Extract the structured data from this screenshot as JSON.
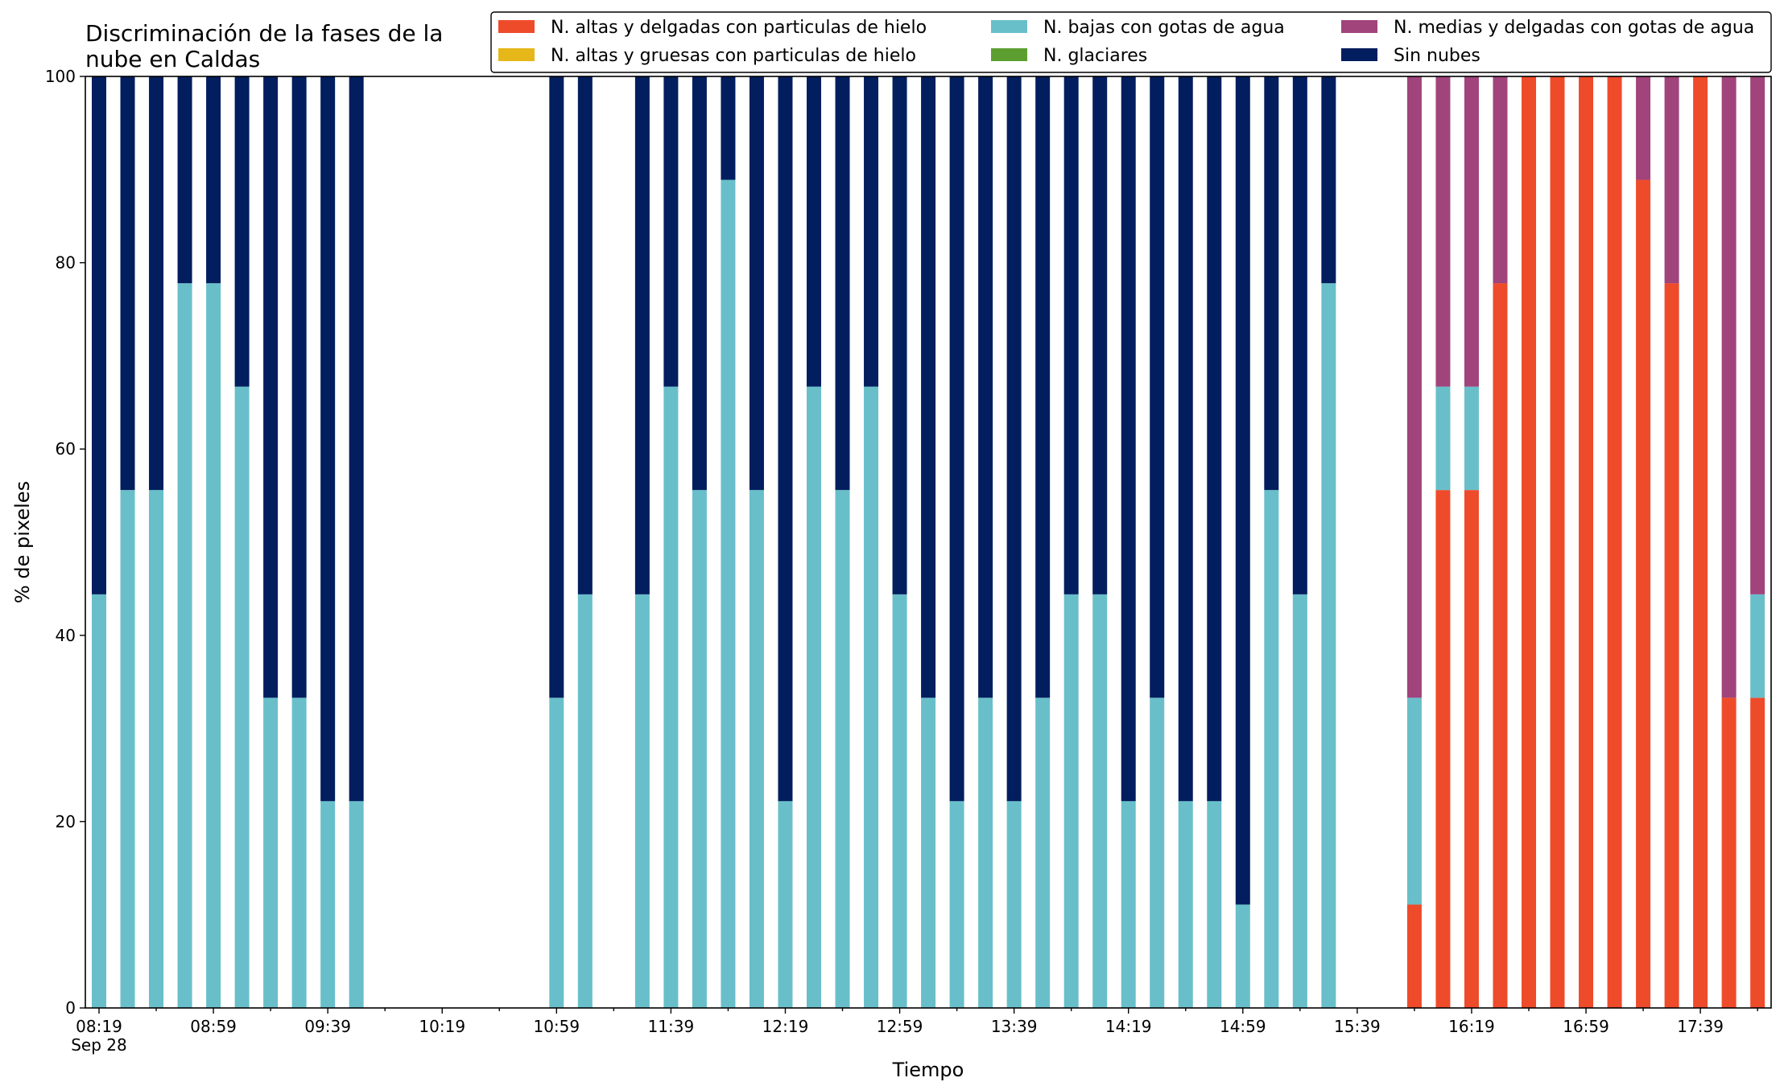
{
  "chart_data": {
    "type": "bar",
    "stacked": true,
    "title_lines": [
      "Discriminación de la fases de la",
      "nube en Caldas"
    ],
    "xlabel": "Tiempo",
    "ylabel": "% de pixeles",
    "ylim": [
      0,
      100
    ],
    "yticks": [
      0,
      20,
      40,
      60,
      80,
      100
    ],
    "x_start": "08:19",
    "x_step_minutes": 10,
    "x_count": 59,
    "xtick_labels": [
      "08:19",
      "08:59",
      "09:39",
      "10:19",
      "10:59",
      "11:39",
      "12:19",
      "12:59",
      "13:39",
      "14:19",
      "14:59",
      "15:39",
      "16:19",
      "16:59",
      "17:39"
    ],
    "xtick_sublabel": "Sep 28",
    "legend_placement": "top-right",
    "series": [
      {
        "name": "N. altas y delgadas con particulas de hielo",
        "color": "#ee4b2b",
        "values": [
          0,
          0,
          0,
          0,
          0,
          0,
          0,
          0,
          0,
          0,
          0,
          0,
          0,
          0,
          0,
          0,
          0,
          0,
          0,
          0,
          0,
          0,
          0,
          0,
          0,
          0,
          0,
          0,
          0,
          0,
          0,
          0,
          0,
          0,
          0,
          0,
          0,
          0,
          0,
          0,
          0,
          0,
          0,
          0,
          0,
          0,
          11.1,
          55.6,
          55.6,
          77.8,
          100,
          100,
          100,
          100,
          88.9,
          77.8,
          100,
          33.3,
          33.3
        ]
      },
      {
        "name": "N. altas y gruesas con particulas de hielo",
        "color": "#e5b718",
        "values": [
          0,
          0,
          0,
          0,
          0,
          0,
          0,
          0,
          0,
          0,
          0,
          0,
          0,
          0,
          0,
          0,
          0,
          0,
          0,
          0,
          0,
          0,
          0,
          0,
          0,
          0,
          0,
          0,
          0,
          0,
          0,
          0,
          0,
          0,
          0,
          0,
          0,
          0,
          0,
          0,
          0,
          0,
          0,
          0,
          0,
          0,
          0,
          0,
          0,
          0,
          0,
          0,
          0,
          0,
          0,
          0,
          0,
          0,
          0
        ]
      },
      {
        "name": "N. bajas con gotas de agua",
        "color": "#68bfca",
        "values": [
          44.4,
          55.6,
          55.6,
          77.8,
          77.8,
          66.7,
          33.3,
          33.3,
          22.2,
          22.2,
          0,
          0,
          0,
          0,
          0,
          0,
          33.3,
          44.4,
          0,
          44.4,
          66.7,
          55.6,
          88.9,
          55.6,
          22.2,
          66.7,
          55.6,
          66.7,
          44.4,
          33.3,
          22.2,
          33.3,
          22.2,
          33.3,
          44.4,
          44.4,
          22.2,
          33.3,
          22.2,
          22.2,
          11.1,
          55.6,
          44.4,
          77.8,
          0,
          0,
          22.2,
          11.1,
          11.1,
          0,
          0,
          0,
          0,
          0,
          0,
          0,
          0,
          0,
          11.1
        ]
      },
      {
        "name": "N. glaciares",
        "color": "#5d9e31",
        "values": [
          0,
          0,
          0,
          0,
          0,
          0,
          0,
          0,
          0,
          0,
          0,
          0,
          0,
          0,
          0,
          0,
          0,
          0,
          0,
          0,
          0,
          0,
          0,
          0,
          0,
          0,
          0,
          0,
          0,
          0,
          0,
          0,
          0,
          0,
          0,
          0,
          0,
          0,
          0,
          0,
          0,
          0,
          0,
          0,
          0,
          0,
          0,
          0,
          0,
          0,
          0,
          0,
          0,
          0,
          0,
          0,
          0,
          0,
          0
        ]
      },
      {
        "name": "N. medias y delgadas con gotas de agua",
        "color": "#a0447b",
        "values": [
          0,
          0,
          0,
          0,
          0,
          0,
          0,
          0,
          0,
          0,
          0,
          0,
          0,
          0,
          0,
          0,
          0,
          0,
          0,
          0,
          0,
          0,
          0,
          0,
          0,
          0,
          0,
          0,
          0,
          0,
          0,
          0,
          0,
          0,
          0,
          0,
          0,
          0,
          0,
          0,
          0,
          0,
          0,
          0,
          0,
          0,
          66.7,
          33.3,
          33.3,
          22.2,
          0,
          0,
          0,
          0,
          11.1,
          22.2,
          0,
          66.7,
          55.6
        ]
      },
      {
        "name": "Sin nubes",
        "color": "#021e5e",
        "values": [
          55.6,
          44.4,
          44.4,
          22.2,
          22.2,
          33.3,
          66.7,
          66.7,
          77.8,
          77.8,
          0,
          0,
          0,
          0,
          0,
          0,
          66.7,
          55.6,
          0,
          55.6,
          33.3,
          44.4,
          11.1,
          44.4,
          77.8,
          33.3,
          44.4,
          33.3,
          55.6,
          66.7,
          77.8,
          66.7,
          77.8,
          66.7,
          55.6,
          55.6,
          77.8,
          66.7,
          77.8,
          77.8,
          88.9,
          44.4,
          55.6,
          22.2,
          0,
          0,
          0,
          0,
          0,
          0,
          0,
          0,
          0,
          0,
          0,
          0,
          0,
          0,
          0
        ]
      }
    ]
  }
}
